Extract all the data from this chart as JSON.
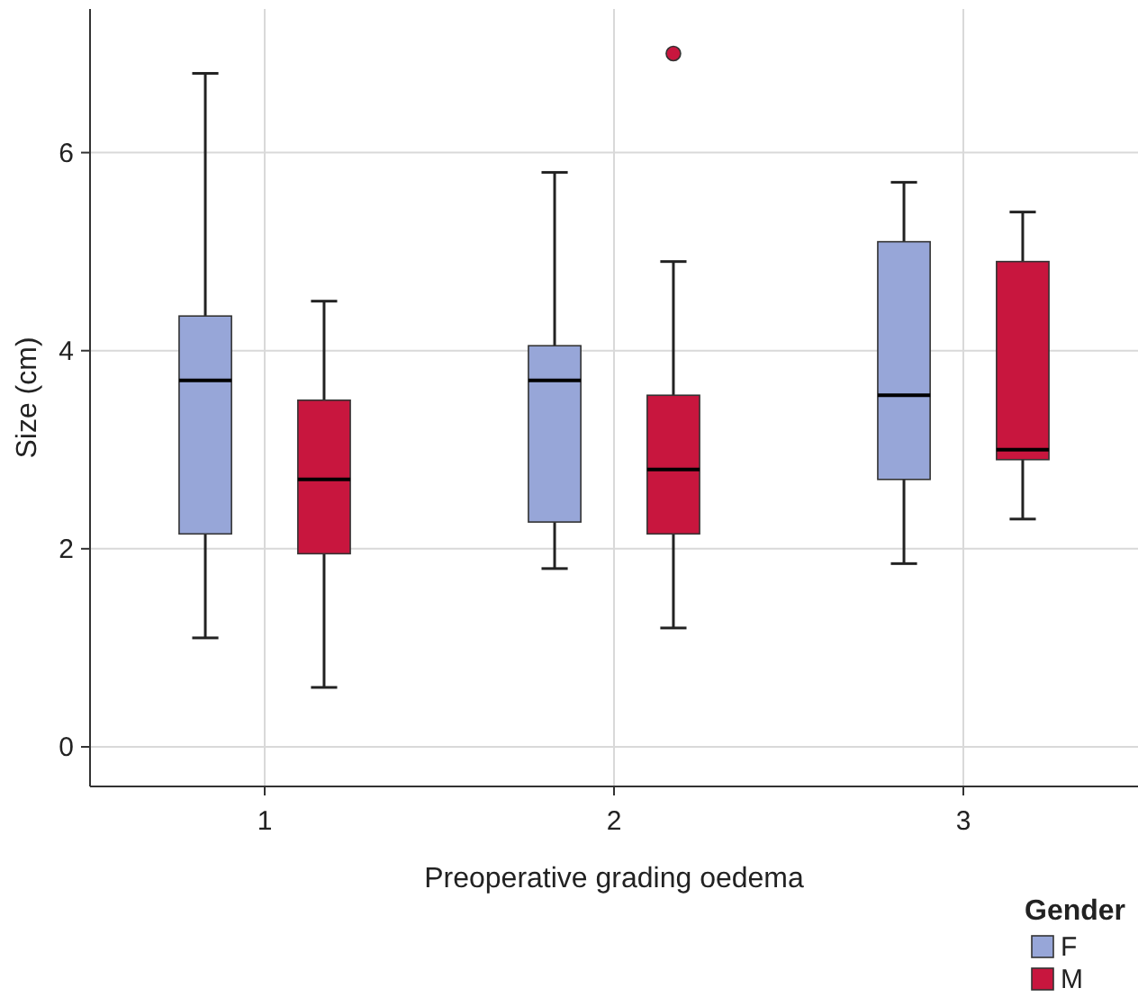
{
  "chart_data": {
    "type": "box",
    "xlabel": "Preoperative grading oedema",
    "ylabel": "Size (cm)",
    "legend_title": "Gender",
    "categories": [
      "1",
      "2",
      "3"
    ],
    "ylim": [
      -0.4,
      7.45
    ],
    "yticks": [
      0,
      2,
      4,
      6
    ],
    "grid": true,
    "legend": "bottom right",
    "series": [
      {
        "name": "F",
        "color": "#97a6d8",
        "boxes": [
          {
            "low": 1.1,
            "q1": 2.15,
            "median": 3.7,
            "q3": 4.35,
            "high": 6.8
          },
          {
            "low": 1.8,
            "q1": 2.27,
            "median": 3.7,
            "q3": 4.05,
            "high": 5.8
          },
          {
            "low": 1.85,
            "q1": 2.7,
            "median": 3.55,
            "q3": 5.1,
            "high": 5.7
          }
        ]
      },
      {
        "name": "M",
        "color": "#c8163e",
        "boxes": [
          {
            "low": 0.6,
            "q1": 1.95,
            "median": 2.7,
            "q3": 3.5,
            "high": 4.5
          },
          {
            "low": 1.2,
            "q1": 2.15,
            "median": 2.8,
            "q3": 3.55,
            "high": 4.9,
            "outliers": [
              7.0
            ]
          },
          {
            "low": 2.3,
            "q1": 2.9,
            "median": 3.0,
            "q3": 4.9,
            "high": 5.4
          }
        ]
      }
    ]
  }
}
